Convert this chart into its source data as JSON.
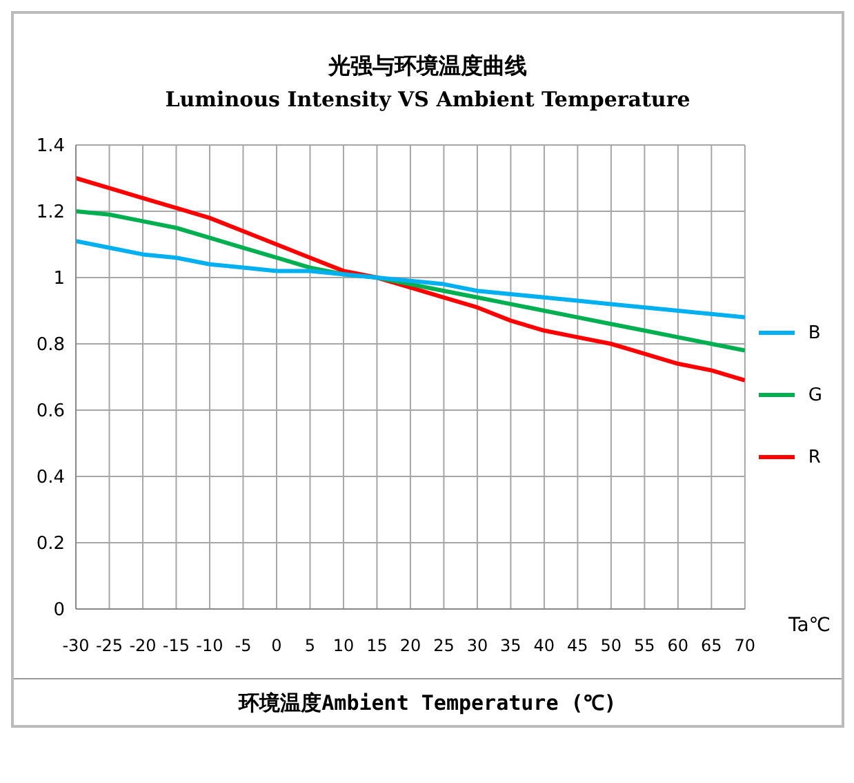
{
  "chart_data": {
    "type": "line",
    "title": "光强与环境温度曲线",
    "subtitle": "Luminous Intensity VS Ambient Temperature",
    "xlabel": "环境温度Ambient   Temperature (℃)",
    "annotations": [
      "Ta℃"
    ],
    "x": [
      -30,
      -25,
      -20,
      -15,
      -10,
      -5,
      0,
      5,
      10,
      15,
      20,
      25,
      30,
      35,
      40,
      45,
      50,
      55,
      60,
      65,
      70
    ],
    "series": [
      {
        "name": "R",
        "color": "#ff0000",
        "values": [
          1.3,
          1.27,
          1.24,
          1.21,
          1.18,
          1.14,
          1.1,
          1.06,
          1.02,
          1.0,
          0.97,
          0.94,
          0.91,
          0.87,
          0.84,
          0.82,
          0.8,
          0.77,
          0.74,
          0.72,
          0.69
        ]
      },
      {
        "name": "G",
        "color": "#00b050",
        "values": [
          1.2,
          1.19,
          1.17,
          1.15,
          1.12,
          1.09,
          1.06,
          1.03,
          1.01,
          1.0,
          0.98,
          0.96,
          0.94,
          0.92,
          0.9,
          0.88,
          0.86,
          0.84,
          0.82,
          0.8,
          0.78
        ]
      },
      {
        "name": "B",
        "color": "#00b0f0",
        "values": [
          1.11,
          1.09,
          1.07,
          1.06,
          1.04,
          1.03,
          1.02,
          1.02,
          1.01,
          1.0,
          0.99,
          0.98,
          0.96,
          0.95,
          0.94,
          0.93,
          0.92,
          0.91,
          0.9,
          0.89,
          0.88
        ]
      }
    ],
    "xlim": [
      -30,
      70
    ],
    "xticks": [
      -30,
      -25,
      -20,
      -15,
      -10,
      -5,
      0,
      5,
      10,
      15,
      20,
      25,
      30,
      35,
      40,
      45,
      50,
      55,
      60,
      65,
      70
    ],
    "ylim": [
      0,
      1.4
    ],
    "yticks": [
      0,
      0.2,
      0.4,
      0.6,
      0.8,
      1,
      1.2,
      1.4
    ],
    "grid": true,
    "legend": "right",
    "marker": "none",
    "line_style": "solid"
  }
}
